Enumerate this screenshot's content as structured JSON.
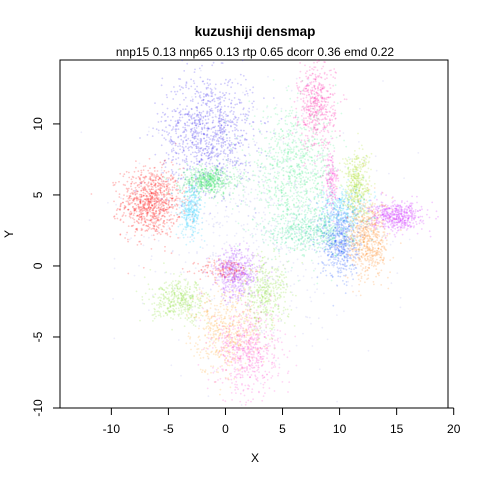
{
  "chart_data": {
    "type": "scatter",
    "title": "kuzushiji densmap",
    "subtitle": "nnp15 0.13 nnp65 0.13 rtp 0.65 dcorr 0.36 emd 0.22",
    "xlabel": "X",
    "ylabel": "Y",
    "xlim": [
      -14.5,
      19.5
    ],
    "ylim": [
      -10,
      14.5
    ],
    "x_ticks": [
      -10,
      -5,
      0,
      5,
      10,
      15,
      20
    ],
    "y_ticks": [
      -10,
      -5,
      0,
      5,
      10
    ],
    "grid": false,
    "legend": "none",
    "clusters": [
      {
        "color": "#ff0000",
        "cx": -6.5,
        "cy": 4.5,
        "sx": 1.3,
        "sy": 1.2,
        "n": 900
      },
      {
        "color": "#ff0000",
        "cx": 0.0,
        "cy": -0.3,
        "sx": 1.2,
        "sy": 0.4,
        "n": 150
      },
      {
        "color": "#3322ee",
        "cx": -1.5,
        "cy": 9.5,
        "sx": 2.0,
        "sy": 2.0,
        "n": 1000
      },
      {
        "color": "#22dd55",
        "cx": -1.5,
        "cy": 6.0,
        "sx": 1.2,
        "sy": 0.5,
        "n": 500
      },
      {
        "color": "#44ee88",
        "cx": 6.0,
        "cy": 6.5,
        "sx": 2.0,
        "sy": 2.2,
        "n": 900
      },
      {
        "color": "#ff22aa",
        "cx": 8.0,
        "cy": 11.2,
        "sx": 0.8,
        "sy": 1.5,
        "n": 500
      },
      {
        "color": "#ff22cc",
        "cx": 9.3,
        "cy": 6.0,
        "sx": 0.3,
        "sy": 1.0,
        "n": 150
      },
      {
        "color": "#22ccff",
        "cx": -3.0,
        "cy": 4.0,
        "sx": 0.5,
        "sy": 0.9,
        "n": 300
      },
      {
        "color": "#22ccff",
        "cx": 10.5,
        "cy": 4.0,
        "sx": 1.2,
        "sy": 0.8,
        "n": 300
      },
      {
        "color": "#2255ff",
        "cx": 10.0,
        "cy": 1.8,
        "sx": 0.8,
        "sy": 1.3,
        "n": 600
      },
      {
        "color": "#aadd22",
        "cx": 11.5,
        "cy": 5.8,
        "sx": 0.6,
        "sy": 1.2,
        "n": 400
      },
      {
        "color": "#ff8822",
        "cx": 12.5,
        "cy": 1.8,
        "sx": 0.9,
        "sy": 1.4,
        "n": 600
      },
      {
        "color": "#cc22ff",
        "cx": 15.0,
        "cy": 3.5,
        "sx": 1.1,
        "sy": 0.5,
        "n": 500
      },
      {
        "color": "#33dd99",
        "cx": 7.5,
        "cy": 2.5,
        "sx": 1.8,
        "sy": 0.8,
        "n": 500
      },
      {
        "color": "#aa33ff",
        "cx": 1.0,
        "cy": -0.5,
        "sx": 1.0,
        "sy": 0.9,
        "n": 500
      },
      {
        "color": "#88dd33",
        "cx": 3.5,
        "cy": -2.0,
        "sx": 1.0,
        "sy": 1.3,
        "n": 400
      },
      {
        "color": "#88dd33",
        "cx": -4.0,
        "cy": -2.5,
        "sx": 1.2,
        "sy": 0.7,
        "n": 400
      },
      {
        "color": "#ffaa33",
        "cx": 0.0,
        "cy": -4.5,
        "sx": 1.5,
        "sy": 1.5,
        "n": 500
      },
      {
        "color": "#ff44cc",
        "cx": 2.0,
        "cy": -6.0,
        "sx": 1.4,
        "sy": 1.5,
        "n": 600
      },
      {
        "color": "#aaaaee",
        "cx": 3.0,
        "cy": 3.0,
        "sx": 5.0,
        "sy": 4.5,
        "n": 700
      }
    ]
  }
}
